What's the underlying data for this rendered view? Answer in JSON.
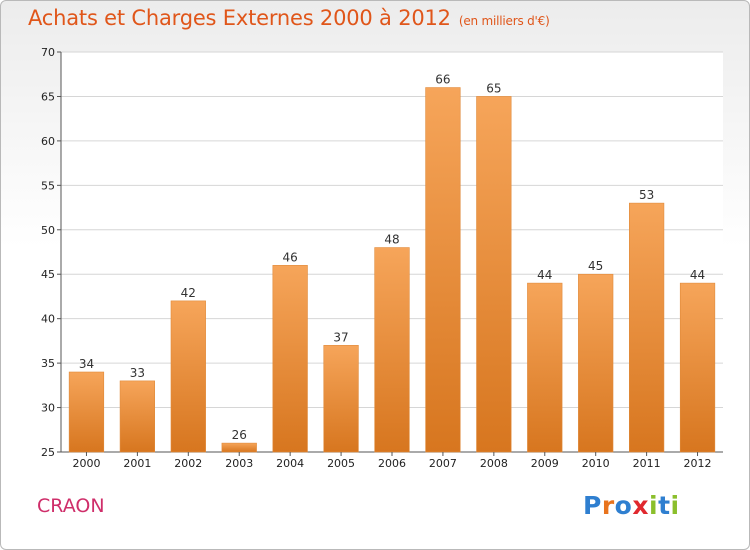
{
  "header": {
    "title": "Achats et Charges Externes 2000 à 2012",
    "subtitle": "(en milliers d'€)"
  },
  "footer": {
    "commune": "CRAON",
    "logo": {
      "text": "Proxiti",
      "letter_colors": [
        "#2f7fd0",
        "#e8731d",
        "#2f7fd0",
        "#e0282e",
        "#8bbf2c",
        "#2f7fd0",
        "#8bbf2c"
      ]
    }
  },
  "colors": {
    "bar_top": "#f6a55a",
    "bar_bottom": "#d7761f",
    "title": "#e0561a",
    "commune": "#cf2e6a"
  },
  "chart_data": {
    "type": "bar",
    "title": "Achats et Charges Externes 2000 à 2012",
    "subtitle": "(en milliers d'€)",
    "categories": [
      "2000",
      "2001",
      "2002",
      "2003",
      "2004",
      "2005",
      "2006",
      "2007",
      "2008",
      "2009",
      "2010",
      "2011",
      "2012"
    ],
    "values": [
      34,
      33,
      42,
      26,
      46,
      37,
      48,
      66,
      65,
      44,
      45,
      53,
      44
    ],
    "ylim": [
      25,
      70
    ],
    "yticks": [
      25,
      30,
      35,
      40,
      45,
      50,
      55,
      60,
      65,
      70
    ],
    "grid": true,
    "data_labels": true,
    "legend": "none"
  }
}
